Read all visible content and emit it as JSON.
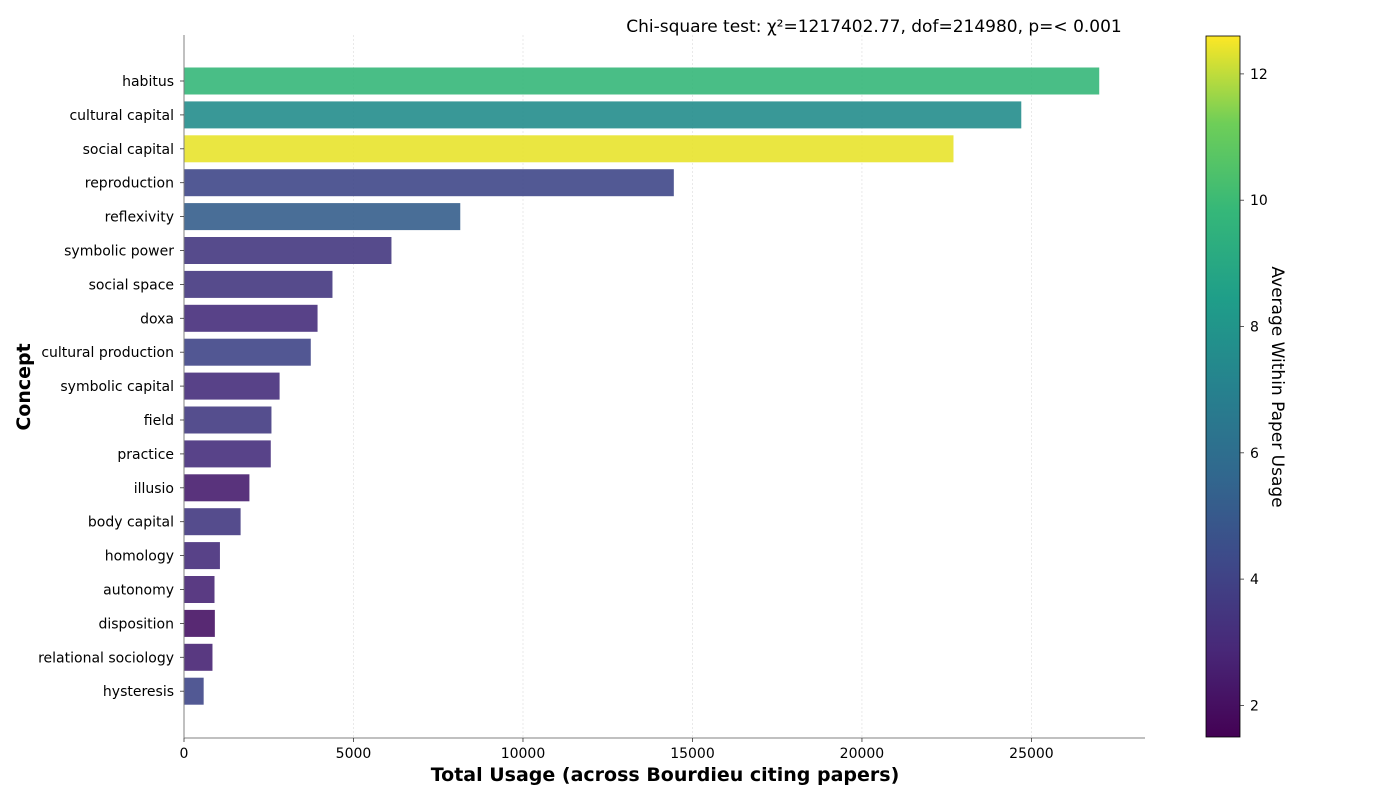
{
  "chart_data": {
    "type": "bar",
    "orientation": "horizontal",
    "title": "Chi-square test: χ²=1217402.77, dof=214980, p=< 0.001",
    "xlabel": "Total Usage (across Bourdieu citing papers)",
    "ylabel": "Concept",
    "xlim": [
      0,
      28350
    ],
    "xticks": [
      0,
      5000,
      10000,
      15000,
      20000,
      25000
    ],
    "grid": "vertical",
    "categories": [
      "habitus",
      "cultural capital",
      "social capital",
      "reproduction",
      "reflexivity",
      "symbolic power",
      "social space",
      "doxa",
      "cultural production",
      "symbolic capital",
      "field",
      "practice",
      "illusio",
      "body capital",
      "homology",
      "autonomy",
      "disposition",
      "relational sociology",
      "hysteresis"
    ],
    "values": [
      27000,
      24700,
      22700,
      14450,
      8150,
      6120,
      4380,
      3940,
      3740,
      2820,
      2580,
      2560,
      1930,
      1670,
      1060,
      900,
      910,
      840,
      580
    ],
    "color_values": [
      9.8,
      7.6,
      12.4,
      4.2,
      5.2,
      3.5,
      3.5,
      3.1,
      4.1,
      3.1,
      3.7,
      3.2,
      2.5,
      3.6,
      3.1,
      2.8,
      2.1,
      2.7,
      4.2
    ],
    "colorbar": {
      "label": "Average Within Paper Usage",
      "range": [
        1.5,
        12.6
      ],
      "ticks": [
        2,
        4,
        6,
        8,
        10,
        12
      ],
      "colormap": "viridis"
    }
  }
}
